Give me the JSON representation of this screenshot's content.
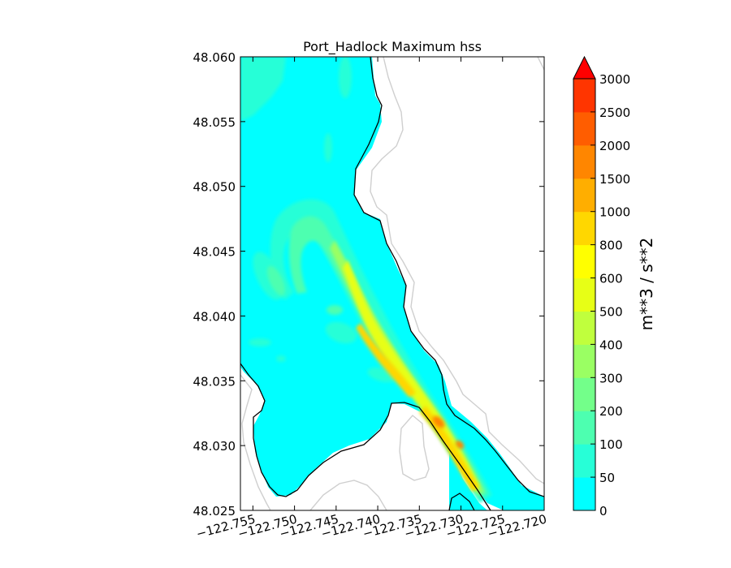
{
  "chart_data": {
    "type": "heatmap",
    "title": "Port_Hadlock Maximum hss",
    "xlabel": "",
    "ylabel": "",
    "x_ticks": [
      "−122.755",
      "−122.750",
      "−122.745",
      "−122.740",
      "−122.735",
      "−122.730",
      "−122.725",
      "−122.720"
    ],
    "x_tick_values": [
      -122.755,
      -122.75,
      -122.745,
      -122.74,
      -122.735,
      -122.73,
      -122.725,
      -122.72
    ],
    "y_ticks": [
      "48.025",
      "48.030",
      "48.035",
      "48.040",
      "48.045",
      "48.050",
      "48.055",
      "48.060"
    ],
    "y_tick_values": [
      48.025,
      48.03,
      48.035,
      48.04,
      48.045,
      48.05,
      48.055,
      48.06
    ],
    "xlim": [
      -122.7565,
      -122.72
    ],
    "ylim": [
      48.025,
      48.06
    ],
    "grid": false,
    "colorbar": {
      "label": "m**3 / s**2",
      "extend": "max",
      "levels": [
        "0",
        "50",
        "100",
        "200",
        "300",
        "400",
        "500",
        "600",
        "800",
        "1000",
        "1500",
        "2000",
        "2500",
        "3000"
      ],
      "colors": [
        "#00ffff",
        "#27ffd7",
        "#4dffb0",
        "#73ff8a",
        "#9aff63",
        "#c0ff3d",
        "#e7ff16",
        "#ffff00",
        "#ffd700",
        "#ffae00",
        "#ff8600",
        "#ff5d00",
        "#ff3500",
        "#ff0000"
      ],
      "extend_color": "#ff0000"
    },
    "field_summary": {
      "channel_max_range": "1000-1500",
      "plume_range": "100-500",
      "background_range": "0-50"
    }
  }
}
